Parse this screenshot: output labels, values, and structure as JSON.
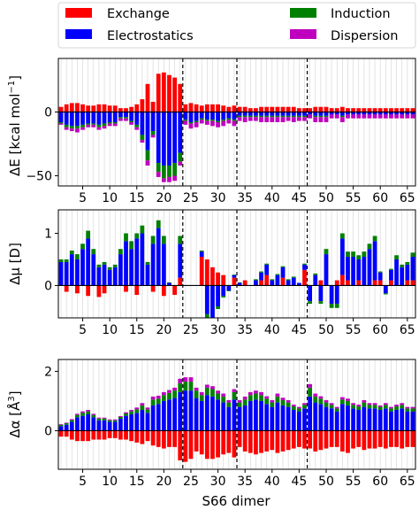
{
  "chart_data": {
    "type": "bar",
    "stacking": "positive and negative contributions stacked separately per dimer",
    "xlabel": "S66 dimer",
    "x_ticks": [
      5,
      10,
      15,
      20,
      25,
      30,
      35,
      40,
      45,
      50,
      55,
      60,
      65
    ],
    "x_range": [
      0.5,
      66.5
    ],
    "vertical_grid": true,
    "separators_after_dimer": [
      23,
      33,
      46
    ],
    "legend": {
      "placement": "top",
      "columns": 2,
      "entries": [
        {
          "name": "Exchange",
          "color": "#ff0000"
        },
        {
          "name": "Induction",
          "color": "#008000"
        },
        {
          "name": "Electrostatics",
          "color": "#0000ff"
        },
        {
          "name": "Dispersion",
          "color": "#bf00bf"
        }
      ]
    },
    "panels": [
      {
        "key": "dE",
        "ylabel_main": "ΔE [kcal mol",
        "ylabel_sup": "−1",
        "ylabel_end": "]",
        "y_range": [
          -58,
          42
        ],
        "y_ticks": [
          -50,
          0
        ],
        "series": {
          "exchange": [
            4,
            6,
            7,
            7,
            6,
            5,
            5,
            6,
            6,
            5,
            5,
            3,
            3,
            4,
            6,
            10,
            22,
            8,
            30,
            31,
            29,
            27,
            22,
            6,
            7,
            6,
            5,
            6,
            6,
            6,
            5,
            4,
            5,
            4,
            4,
            3,
            3,
            4,
            4,
            4,
            4,
            4,
            4,
            4,
            3,
            3,
            3,
            4,
            4,
            4,
            3,
            3,
            4,
            3,
            3,
            3,
            3,
            3,
            3,
            3,
            3,
            3,
            3,
            3,
            3,
            3
          ],
          "electrostatics": [
            -8,
            -10,
            -11,
            -11,
            -10,
            -9,
            -9,
            -10,
            -9,
            -8,
            -8,
            -4,
            -4,
            -7,
            -10,
            -18,
            -30,
            -15,
            -40,
            -42,
            -42,
            -40,
            -32,
            -6,
            -8,
            -7,
            -5,
            -6,
            -6,
            -7,
            -6,
            -5,
            -6,
            -3,
            -3,
            -3,
            -3,
            -3,
            -3,
            -3,
            -3,
            -3,
            -3,
            -3,
            -3,
            -3,
            -2,
            -3,
            -3,
            -3,
            -2,
            -2,
            -3,
            -2,
            -2,
            -2,
            -2,
            -2,
            -2,
            -2,
            -2,
            -2,
            -2,
            -2,
            -2,
            -2
          ],
          "induction": [
            -1,
            -2,
            -2,
            -2,
            -2,
            -1,
            -1,
            -2,
            -2,
            -1,
            -1,
            -1,
            -1,
            -1,
            -2,
            -4,
            -8,
            -3,
            -7,
            -10,
            -9,
            -10,
            -7,
            -1,
            -1,
            -1,
            -1,
            -1,
            -1,
            -1,
            -1,
            -1,
            -1,
            -1,
            -1,
            -1,
            -1,
            -1,
            -1,
            -1,
            -1,
            -1,
            -1,
            -1,
            -1,
            -1,
            0,
            -1,
            -1,
            -1,
            0,
            0,
            -1,
            0,
            0,
            0,
            0,
            0,
            0,
            0,
            0,
            0,
            0,
            0,
            0,
            0
          ],
          "dispersion": [
            -1,
            -2,
            -2,
            -3,
            -2,
            -2,
            -2,
            -2,
            -2,
            -2,
            -2,
            -2,
            -2,
            -2,
            -2,
            -2,
            -4,
            -2,
            -4,
            -3,
            -4,
            -4,
            -3,
            -3,
            -4,
            -4,
            -3,
            -3,
            -4,
            -4,
            -4,
            -3,
            -4,
            -3,
            -4,
            -3,
            -3,
            -4,
            -4,
            -4,
            -4,
            -4,
            -3,
            -4,
            -3,
            -3,
            -3,
            -4,
            -4,
            -4,
            -3,
            -3,
            -4,
            -3,
            -3,
            -3,
            -3,
            -3,
            -3,
            -3,
            -3,
            -3,
            -3,
            -3,
            -3,
            -3
          ]
        }
      },
      {
        "key": "dmu",
        "ylabel_main": "Δμ [D]",
        "y_range": [
          -0.62,
          1.45
        ],
        "y_ticks": [
          0,
          1
        ],
        "series": {
          "exchange": [
            0,
            -0.12,
            0,
            -0.15,
            0,
            -0.2,
            0,
            -0.22,
            -0.15,
            0,
            0,
            0,
            -0.12,
            0,
            -0.18,
            0,
            0,
            -0.12,
            0,
            -0.2,
            0,
            -0.18,
            0.15,
            0,
            0,
            0,
            0.55,
            0.5,
            0.35,
            0.25,
            0.2,
            0,
            0.15,
            0,
            0.1,
            0,
            0,
            0.1,
            0.2,
            0,
            0,
            0.15,
            0,
            0,
            0,
            0.3,
            0,
            0,
            0.1,
            0,
            0,
            0.1,
            0.2,
            0.1,
            0,
            0.1,
            0,
            0,
            0.1,
            0.1,
            0,
            0.1,
            0,
            0,
            0.1,
            0.1
          ],
          "electrostatics": [
            0.45,
            0.45,
            0.6,
            0.5,
            0.7,
            0.9,
            0.6,
            0.35,
            0.4,
            0.3,
            0.35,
            0.6,
            0.85,
            0.7,
            0.9,
            1.0,
            0.4,
            0.8,
            1.1,
            0.8,
            0.05,
            0.0,
            0.65,
            0,
            0,
            0,
            0.1,
            -0.55,
            -0.7,
            -0.4,
            -0.2,
            -0.1,
            0.05,
            0.05,
            0,
            0,
            0.1,
            0.15,
            0.2,
            0.1,
            0.2,
            0.2,
            0.1,
            0.15,
            0.05,
            0.1,
            -0.3,
            0.2,
            -0.3,
            0.6,
            -0.35,
            -0.35,
            0.7,
            0.45,
            0.55,
            0.4,
            0.55,
            0.7,
            0.75,
            0.15,
            -0.15,
            0.2,
            0.5,
            0.35,
            0.3,
            0.45
          ],
          "induction": [
            0.05,
            0.05,
            0.07,
            0.1,
            0.1,
            0.15,
            0.1,
            0.05,
            0.05,
            0.05,
            0.05,
            0.1,
            0.15,
            0.15,
            0.1,
            0.15,
            0.05,
            0.15,
            0.15,
            0.15,
            0.01,
            0.0,
            0.15,
            0,
            0,
            0,
            0.02,
            -0.1,
            -0.12,
            -0.05,
            -0.03,
            -0.01,
            0.01,
            0.01,
            0,
            0,
            0.02,
            0.02,
            0.02,
            0.02,
            0.02,
            0.02,
            0.02,
            0.02,
            0,
            0.02,
            -0.05,
            0.03,
            -0.05,
            0.1,
            -0.08,
            -0.08,
            0.1,
            0.1,
            0.1,
            0.08,
            0.1,
            0.1,
            0.1,
            0.02,
            -0.02,
            0.02,
            0.08,
            0.05,
            0.05,
            0.08
          ],
          "dispersion": [
            0,
            0,
            0,
            0,
            0,
            0,
            0,
            0,
            0,
            0,
            0,
            0,
            0,
            0,
            0,
            0,
            0,
            0,
            0,
            0,
            0,
            0,
            0,
            0,
            0,
            0,
            0,
            0,
            0,
            0,
            0,
            0,
            0,
            0,
            0,
            0,
            0,
            0,
            0,
            0,
            0,
            0,
            0,
            0,
            0,
            0,
            0,
            0,
            0,
            0,
            0,
            0,
            0,
            0,
            0,
            0,
            0,
            0,
            0,
            0,
            0,
            0,
            0,
            0,
            0,
            0
          ]
        }
      },
      {
        "key": "dalpha",
        "ylabel_main": "Δα [Å",
        "ylabel_sup": "3",
        "ylabel_end": "]",
        "y_range": [
          -1.3,
          2.4
        ],
        "y_ticks": [
          0,
          2
        ],
        "series": {
          "exchange": [
            -0.2,
            -0.2,
            -0.3,
            -0.35,
            -0.35,
            -0.35,
            -0.3,
            -0.3,
            -0.3,
            -0.25,
            -0.25,
            -0.3,
            -0.3,
            -0.35,
            -0.4,
            -0.45,
            -0.35,
            -0.5,
            -0.55,
            -0.6,
            -0.55,
            -0.55,
            -1.0,
            -1.05,
            -0.95,
            -0.7,
            -0.8,
            -0.95,
            -0.95,
            -0.9,
            -0.8,
            -0.75,
            -0.9,
            -0.55,
            -0.7,
            -0.75,
            -0.8,
            -0.75,
            -0.7,
            -0.65,
            -0.75,
            -0.7,
            -0.65,
            -0.6,
            -0.55,
            -0.6,
            -0.6,
            -0.7,
            -0.65,
            -0.6,
            -0.55,
            -0.55,
            -0.7,
            -0.75,
            -0.6,
            -0.55,
            -0.65,
            -0.6,
            -0.6,
            -0.55,
            -0.6,
            -0.55,
            -0.55,
            -0.6,
            -0.55,
            -0.55
          ],
          "electrostatics": [
            0.15,
            0.2,
            0.3,
            0.45,
            0.5,
            0.55,
            0.45,
            0.35,
            0.35,
            0.3,
            0.3,
            0.4,
            0.5,
            0.55,
            0.6,
            0.7,
            0.6,
            0.85,
            0.9,
            1.0,
            1.05,
            1.1,
            1.3,
            1.35,
            1.35,
            1.1,
            1.0,
            1.2,
            1.15,
            1.05,
            0.95,
            0.8,
            1.05,
            0.8,
            0.85,
            1.0,
            1.05,
            1.0,
            0.9,
            0.8,
            0.95,
            0.85,
            0.8,
            0.7,
            0.65,
            0.75,
            1.15,
            0.95,
            0.9,
            0.8,
            0.75,
            0.65,
            0.9,
            0.85,
            0.75,
            0.7,
            0.8,
            0.75,
            0.75,
            0.7,
            0.75,
            0.65,
            0.7,
            0.75,
            0.65,
            0.65
          ],
          "induction": [
            0.05,
            0.05,
            0.06,
            0.08,
            0.1,
            0.1,
            0.08,
            0.06,
            0.06,
            0.05,
            0.05,
            0.06,
            0.08,
            0.1,
            0.12,
            0.15,
            0.12,
            0.2,
            0.18,
            0.2,
            0.22,
            0.25,
            0.3,
            0.3,
            0.3,
            0.25,
            0.2,
            0.25,
            0.25,
            0.2,
            0.2,
            0.15,
            0.25,
            0.15,
            0.2,
            0.2,
            0.2,
            0.2,
            0.18,
            0.15,
            0.2,
            0.18,
            0.15,
            0.12,
            0.1,
            0.12,
            0.3,
            0.2,
            0.18,
            0.15,
            0.12,
            0.1,
            0.15,
            0.15,
            0.12,
            0.12,
            0.15,
            0.12,
            0.12,
            0.1,
            0.12,
            0.1,
            0.12,
            0.12,
            0.1,
            0.1
          ],
          "dispersion": [
            0.02,
            0.02,
            0.03,
            0.04,
            0.05,
            0.05,
            0.04,
            0.03,
            0.03,
            0.03,
            0.03,
            0.03,
            0.04,
            0.05,
            0.06,
            0.08,
            0.06,
            0.1,
            0.1,
            0.1,
            0.1,
            0.1,
            0.15,
            0.15,
            0.15,
            0.1,
            0.1,
            0.1,
            0.1,
            0.1,
            0.1,
            0.08,
            0.1,
            0.08,
            0.1,
            0.1,
            0.1,
            0.1,
            0.08,
            0.08,
            0.1,
            0.08,
            0.08,
            0.06,
            0.05,
            0.06,
            0.12,
            0.1,
            0.08,
            0.08,
            0.06,
            0.05,
            0.08,
            0.08,
            0.06,
            0.06,
            0.08,
            0.06,
            0.06,
            0.05,
            0.06,
            0.05,
            0.06,
            0.06,
            0.05,
            0.05
          ]
        }
      }
    ]
  }
}
